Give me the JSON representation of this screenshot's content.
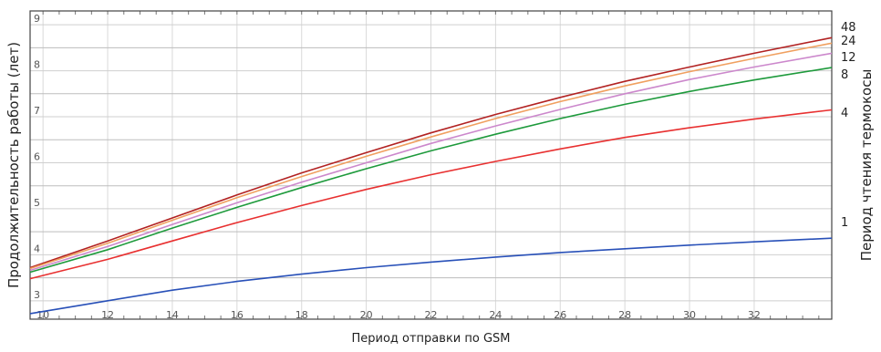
{
  "chart_data": {
    "type": "line",
    "xlabel": "Период отправки по GSM",
    "ylabel": "Продолжительность работы (лет)",
    "right_label": "Период чтения термокосы",
    "xlim": [
      9.6,
      34.4
    ],
    "ylim": [
      2.6,
      9.3
    ],
    "x_ticks": [
      10,
      12,
      14,
      16,
      18,
      20,
      22,
      24,
      26,
      28,
      30,
      32
    ],
    "y_ticks": [
      3,
      4,
      5,
      6,
      7,
      8,
      9
    ],
    "grid": true,
    "series": [
      {
        "name": "48",
        "color": "#b22222",
        "x": [
          9.6,
          12,
          14,
          16,
          18,
          20,
          22,
          24,
          26,
          28,
          30,
          32,
          34.4
        ],
        "y": [
          3.72,
          4.3,
          4.8,
          5.3,
          5.78,
          6.22,
          6.65,
          7.05,
          7.42,
          7.77,
          8.08,
          8.38,
          8.72
        ]
      },
      {
        "name": "24",
        "color": "#f0a060",
        "x": [
          9.6,
          12,
          14,
          16,
          18,
          20,
          22,
          24,
          26,
          28,
          30,
          32,
          34.4
        ],
        "y": [
          3.7,
          4.25,
          4.75,
          5.24,
          5.7,
          6.14,
          6.56,
          6.96,
          7.33,
          7.67,
          7.98,
          8.27,
          8.6
        ]
      },
      {
        "name": "12",
        "color": "#cc88cc",
        "x": [
          9.6,
          12,
          14,
          16,
          18,
          20,
          22,
          24,
          26,
          28,
          30,
          32,
          34.4
        ],
        "y": [
          3.66,
          4.18,
          4.66,
          5.13,
          5.58,
          6.0,
          6.42,
          6.8,
          7.16,
          7.5,
          7.81,
          8.08,
          8.38
        ]
      },
      {
        "name": "8",
        "color": "#1e9a3c",
        "x": [
          9.6,
          12,
          14,
          16,
          18,
          20,
          22,
          24,
          26,
          28,
          30,
          32,
          34.4
        ],
        "y": [
          3.62,
          4.11,
          4.58,
          5.03,
          5.46,
          5.87,
          6.26,
          6.62,
          6.96,
          7.27,
          7.55,
          7.8,
          8.07
        ]
      },
      {
        "name": "4",
        "color": "#e83030",
        "x": [
          9.6,
          12,
          14,
          16,
          18,
          20,
          22,
          24,
          26,
          28,
          30,
          32,
          34.4
        ],
        "y": [
          3.48,
          3.9,
          4.3,
          4.7,
          5.07,
          5.42,
          5.74,
          6.03,
          6.3,
          6.55,
          6.76,
          6.95,
          7.15
        ]
      },
      {
        "name": "1",
        "color": "#2850b8",
        "x": [
          9.6,
          12,
          14,
          16,
          18,
          20,
          22,
          24,
          26,
          28,
          30,
          32,
          34.4
        ],
        "y": [
          2.72,
          3.0,
          3.23,
          3.42,
          3.58,
          3.72,
          3.84,
          3.95,
          4.05,
          4.13,
          4.21,
          4.28,
          4.36
        ]
      }
    ]
  }
}
